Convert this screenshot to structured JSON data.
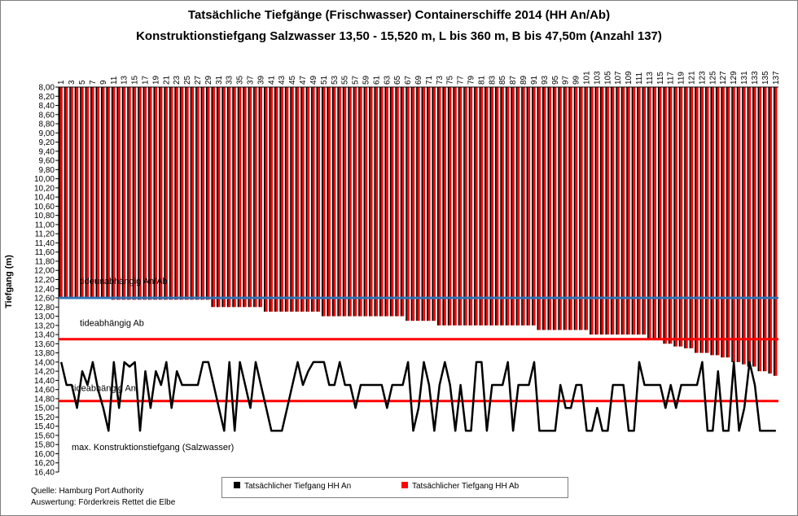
{
  "chart_data": {
    "type": "bar",
    "title": "Tatsächliche Tiefgänge (Frischwasser) Containerschiffe 2014 (HH An/Ab)",
    "subtitle": "Konstruktionstiefgang Salzwasser 13,50 - 15,520 m, L bis 360 m, B bis 47,50m  (Anzahl 137)",
    "ylabel": "Tiefgang (m)",
    "ylim": [
      8.0,
      16.4
    ],
    "ytick_step": 0.2,
    "y_inverted": true,
    "x_categories": "1..137",
    "x_tick_labels_odd": true,
    "grid": false,
    "series_ab": {
      "name": "Tatsächlicher Tiefgang HH Ab",
      "color": "#ff0000",
      "steps": [
        {
          "from": 1,
          "to": 10,
          "value": 12.6
        },
        {
          "from": 11,
          "to": 29,
          "value": 12.64
        },
        {
          "from": 30,
          "to": 39,
          "value": 12.8
        },
        {
          "from": 40,
          "to": 50,
          "value": 12.9
        },
        {
          "from": 51,
          "to": 66,
          "value": 13.0
        },
        {
          "from": 67,
          "to": 72,
          "value": 13.1
        },
        {
          "from": 73,
          "to": 91,
          "value": 13.2
        },
        {
          "from": 92,
          "to": 101,
          "value": 13.3
        },
        {
          "from": 102,
          "to": 112,
          "value": 13.4
        },
        {
          "from": 113,
          "to": 115,
          "value": 13.5
        },
        {
          "from": 116,
          "to": 117,
          "value": 13.6
        },
        {
          "from": 118,
          "to": 119,
          "value": 13.66
        },
        {
          "from": 120,
          "to": 121,
          "value": 13.7
        },
        {
          "from": 122,
          "to": 124,
          "value": 13.8
        },
        {
          "from": 125,
          "to": 126,
          "value": 13.85
        },
        {
          "from": 127,
          "to": 128,
          "value": 13.9
        },
        {
          "from": 129,
          "to": 130,
          "value": 14.0
        },
        {
          "from": 131,
          "to": 131,
          "value": 14.05
        },
        {
          "from": 132,
          "to": 133,
          "value": 14.1
        },
        {
          "from": 134,
          "to": 135,
          "value": 14.2
        },
        {
          "from": 136,
          "to": 136,
          "value": 14.25
        },
        {
          "from": 137,
          "to": 137,
          "value": 14.3
        }
      ]
    },
    "series_an": {
      "name": "Tatsächlicher Tiefgang HH An",
      "color": "#000000",
      "values": [
        14.0,
        14.5,
        14.5,
        15.0,
        14.2,
        14.5,
        14.0,
        14.6,
        15.0,
        15.5,
        14.0,
        15.0,
        14.0,
        14.1,
        14.0,
        15.5,
        14.2,
        15.0,
        14.2,
        14.5,
        14.0,
        15.0,
        14.2,
        14.5,
        14.5,
        14.5,
        14.5,
        14.0,
        14.0,
        14.5,
        15.0,
        15.5,
        14.0,
        15.5,
        14.0,
        14.5,
        15.0,
        14.0,
        14.5,
        15.0,
        15.5,
        15.5,
        15.5,
        15.0,
        14.5,
        14.0,
        14.5,
        14.2,
        14.0,
        14.0,
        14.0,
        14.5,
        14.5,
        14.0,
        14.5,
        14.5,
        15.0,
        14.5,
        14.5,
        14.5,
        14.5,
        14.5,
        15.0,
        14.5,
        14.5,
        14.5,
        14.0,
        15.5,
        15.0,
        14.0,
        14.5,
        15.5,
        14.5,
        14.0,
        14.5,
        15.5,
        14.5,
        15.5,
        15.5,
        14.0,
        14.0,
        15.5,
        14.5,
        14.5,
        14.5,
        14.0,
        15.5,
        14.5,
        14.5,
        14.5,
        14.0,
        15.5,
        15.5,
        15.5,
        15.5,
        14.5,
        15.0,
        15.0,
        14.5,
        14.5,
        15.5,
        15.5,
        15.0,
        15.5,
        15.5,
        14.5,
        14.5,
        14.5,
        15.5,
        15.5,
        14.0,
        14.5,
        14.5,
        14.5,
        14.5,
        15.0,
        14.5,
        15.0,
        14.5,
        14.5,
        14.5,
        14.5,
        14.0,
        15.5,
        15.5,
        14.2,
        15.5,
        15.5,
        14.0,
        15.5,
        15.0,
        14.0,
        14.5,
        15.5,
        15.5,
        15.5,
        15.5
      ],
      "values_note": ""
    },
    "reference_lines": [
      {
        "label": "tideunabhängig An/Ab",
        "value": 12.6,
        "color": "#2e75b6"
      },
      {
        "label": "tideabhängig Ab",
        "value": 13.5,
        "color": "#ff0000"
      },
      {
        "label": "tideabhängig An",
        "value": 14.85,
        "color": "#ff0000"
      }
    ],
    "annotation": "max. Konstruktionstiefgang (Salzwasser)",
    "legend_position": "bottom"
  },
  "notes": {
    "source": "Quelle: Hamburg Port Authority",
    "analysis": "Auswertung: Förderkreis Rettet die Elbe"
  }
}
